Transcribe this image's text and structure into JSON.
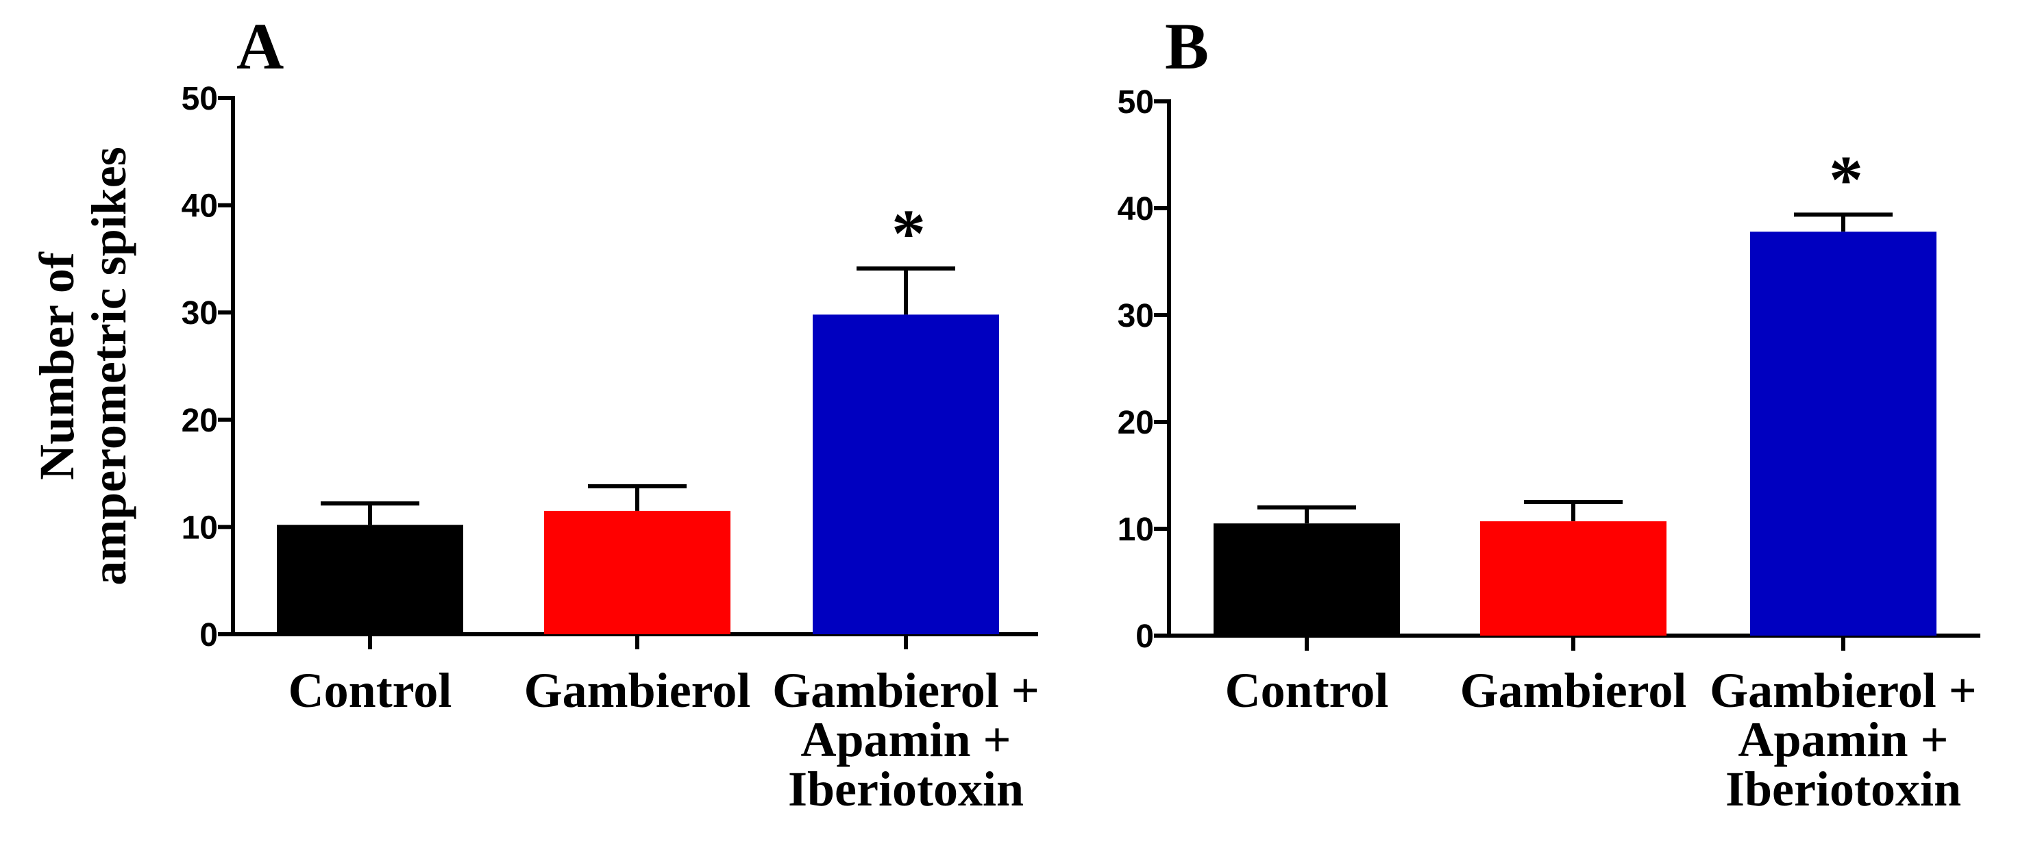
{
  "chart_data": [
    {
      "type": "bar",
      "panel_label": "A",
      "ylabel": "Number of amperometric spikes",
      "ylabel_lines": [
        "Number of",
        "amperometric spikes"
      ],
      "ylim": [
        0,
        50
      ],
      "yticks": [
        0,
        10,
        20,
        30,
        40,
        50
      ],
      "categories": [
        "Control",
        "Gambierol",
        "Gambierol + Apamin + Iberiotoxin"
      ],
      "category_lines": [
        [
          "Control"
        ],
        [
          "Gambierol"
        ],
        [
          "Gambierol +",
          "Apamin +",
          "Iberiotoxin"
        ]
      ],
      "values": [
        10.2,
        11.5,
        29.8
      ],
      "errors": [
        2.0,
        2.3,
        4.3
      ],
      "colors": [
        "#000000",
        "#ff0000",
        "#0000c0"
      ],
      "significance": [
        "",
        "",
        "*"
      ]
    },
    {
      "type": "bar",
      "panel_label": "B",
      "ylabel": "",
      "ylabel_lines": [],
      "ylim": [
        0,
        50
      ],
      "yticks": [
        0,
        10,
        20,
        30,
        40,
        50
      ],
      "categories": [
        "Control",
        "Gambierol",
        "Gambierol + Apamin + Iberiotoxin"
      ],
      "category_lines": [
        [
          "Control"
        ],
        [
          "Gambierol"
        ],
        [
          "Gambierol +",
          "Apamin +",
          "Iberiotoxin"
        ]
      ],
      "values": [
        10.5,
        10.7,
        37.8
      ],
      "errors": [
        1.5,
        1.8,
        1.6
      ],
      "colors": [
        "#000000",
        "#ff0000",
        "#0000c0"
      ],
      "significance": [
        "",
        "",
        "*"
      ]
    }
  ]
}
